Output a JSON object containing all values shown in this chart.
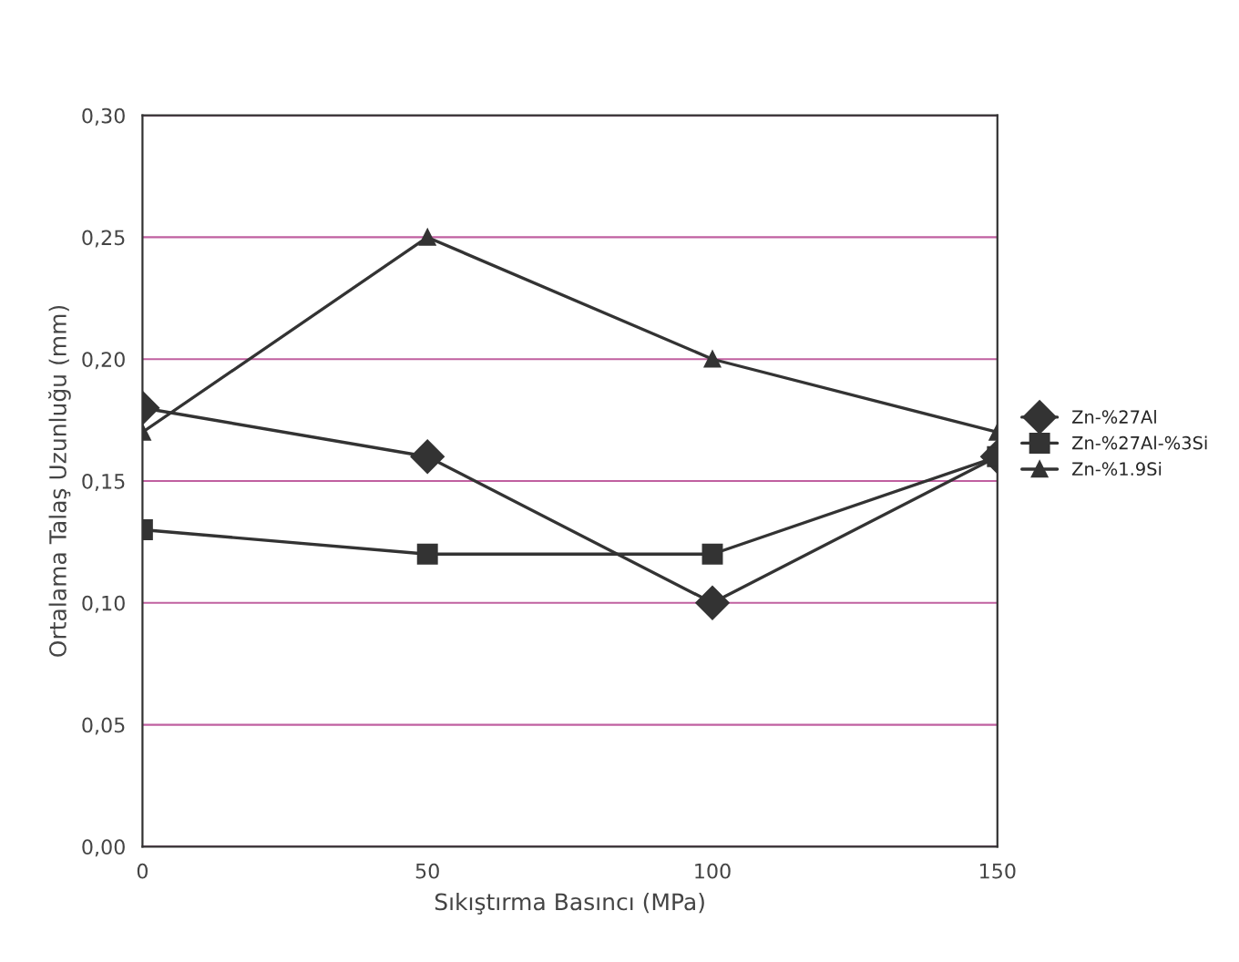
{
  "chart_data": {
    "type": "line",
    "xlabel": "Sıkıştırma Basıncı (MPa)",
    "ylabel": "Ortalama Talaş Uzunluğu (mm)",
    "x": [
      0,
      50,
      100,
      150
    ],
    "series": [
      {
        "name": "Zn-%27Al",
        "color": "#333333",
        "marker": "diamond",
        "values": [
          0.18,
          0.16,
          0.1,
          0.16
        ]
      },
      {
        "name": "Zn-%27Al-%3Si",
        "color": "#333333",
        "marker": "square",
        "values": [
          0.13,
          0.12,
          0.12,
          0.16
        ]
      },
      {
        "name": "Zn-%1.9Si",
        "color": "#333333",
        "marker": "triangle",
        "values": [
          0.17,
          0.25,
          0.2,
          0.17
        ]
      }
    ],
    "xlim": [
      0,
      150
    ],
    "xticks": [
      0,
      50,
      100,
      150
    ],
    "ylim": [
      0,
      0.3
    ],
    "yticks": [
      {
        "value": 0,
        "label": "0,00"
      },
      {
        "value": 0.05,
        "label": "0,05"
      },
      {
        "value": 0.1,
        "label": "0,10"
      },
      {
        "value": 0.15,
        "label": "0,15"
      },
      {
        "value": 0.2,
        "label": "0,20"
      },
      {
        "value": 0.25,
        "label": "0,25"
      },
      {
        "value": 0.3,
        "label": "0,30"
      }
    ],
    "grid": "y",
    "legend": "right",
    "line_style": "solid"
  }
}
